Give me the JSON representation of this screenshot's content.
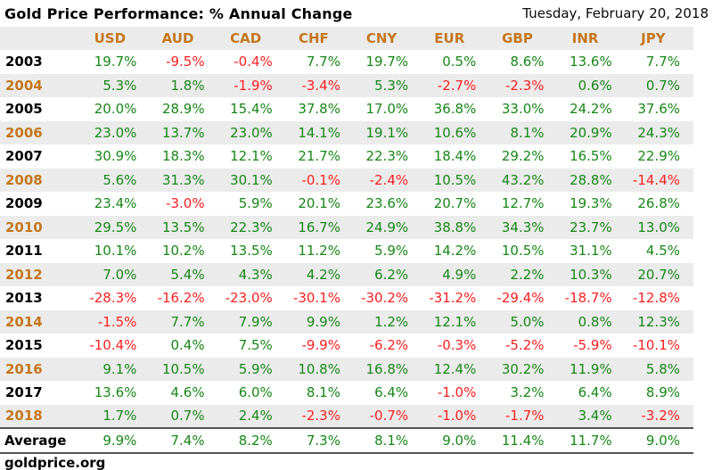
{
  "header": {
    "title": "Gold Price Performance: % Annual Change",
    "date": "Tuesday, February 20, 2018"
  },
  "chart_data": {
    "type": "table",
    "title": "Gold Price Performance: % Annual Change",
    "columns": [
      "USD",
      "AUD",
      "CAD",
      "CHF",
      "CNY",
      "EUR",
      "GBP",
      "INR",
      "JPY"
    ],
    "rows": [
      {
        "year": "2003",
        "values": [
          "19.7%",
          "-9.5%",
          "-0.4%",
          "7.7%",
          "19.7%",
          "0.5%",
          "8.6%",
          "13.6%",
          "7.7%"
        ]
      },
      {
        "year": "2004",
        "values": [
          "5.3%",
          "1.8%",
          "-1.9%",
          "-3.4%",
          "5.3%",
          "-2.7%",
          "-2.3%",
          "0.6%",
          "0.7%"
        ]
      },
      {
        "year": "2005",
        "values": [
          "20.0%",
          "28.9%",
          "15.4%",
          "37.8%",
          "17.0%",
          "36.8%",
          "33.0%",
          "24.2%",
          "37.6%"
        ]
      },
      {
        "year": "2006",
        "values": [
          "23.0%",
          "13.7%",
          "23.0%",
          "14.1%",
          "19.1%",
          "10.6%",
          "8.1%",
          "20.9%",
          "24.3%"
        ]
      },
      {
        "year": "2007",
        "values": [
          "30.9%",
          "18.3%",
          "12.1%",
          "21.7%",
          "22.3%",
          "18.4%",
          "29.2%",
          "16.5%",
          "22.9%"
        ]
      },
      {
        "year": "2008",
        "values": [
          "5.6%",
          "31.3%",
          "30.1%",
          "-0.1%",
          "-2.4%",
          "10.5%",
          "43.2%",
          "28.8%",
          "-14.4%"
        ]
      },
      {
        "year": "2009",
        "values": [
          "23.4%",
          "-3.0%",
          "5.9%",
          "20.1%",
          "23.6%",
          "20.7%",
          "12.7%",
          "19.3%",
          "26.8%"
        ]
      },
      {
        "year": "2010",
        "values": [
          "29.5%",
          "13.5%",
          "22.3%",
          "16.7%",
          "24.9%",
          "38.8%",
          "34.3%",
          "23.7%",
          "13.0%"
        ]
      },
      {
        "year": "2011",
        "values": [
          "10.1%",
          "10.2%",
          "13.5%",
          "11.2%",
          "5.9%",
          "14.2%",
          "10.5%",
          "31.1%",
          "4.5%"
        ]
      },
      {
        "year": "2012",
        "values": [
          "7.0%",
          "5.4%",
          "4.3%",
          "4.2%",
          "6.2%",
          "4.9%",
          "2.2%",
          "10.3%",
          "20.7%"
        ]
      },
      {
        "year": "2013",
        "values": [
          "-28.3%",
          "-16.2%",
          "-23.0%",
          "-30.1%",
          "-30.2%",
          "-31.2%",
          "-29.4%",
          "-18.7%",
          "-12.8%"
        ]
      },
      {
        "year": "2014",
        "values": [
          "-1.5%",
          "7.7%",
          "7.9%",
          "9.9%",
          "1.2%",
          "12.1%",
          "5.0%",
          "0.8%",
          "12.3%"
        ]
      },
      {
        "year": "2015",
        "values": [
          "-10.4%",
          "0.4%",
          "7.5%",
          "-9.9%",
          "-6.2%",
          "-0.3%",
          "-5.2%",
          "-5.9%",
          "-10.1%"
        ]
      },
      {
        "year": "2016",
        "values": [
          "9.1%",
          "10.5%",
          "5.9%",
          "10.8%",
          "16.8%",
          "12.4%",
          "30.2%",
          "11.9%",
          "5.8%"
        ]
      },
      {
        "year": "2017",
        "values": [
          "13.6%",
          "4.6%",
          "6.0%",
          "8.1%",
          "6.4%",
          "-1.0%",
          "3.2%",
          "6.4%",
          "8.9%"
        ]
      },
      {
        "year": "2018",
        "values": [
          "1.7%",
          "0.7%",
          "2.4%",
          "-2.3%",
          "-0.7%",
          "-1.0%",
          "-1.7%",
          "3.4%",
          "-3.2%"
        ]
      }
    ],
    "average": {
      "label": "Average",
      "values": [
        "9.9%",
        "7.4%",
        "8.2%",
        "7.3%",
        "8.1%",
        "9.0%",
        "11.4%",
        "11.7%",
        "9.0%"
      ]
    }
  },
  "footer": {
    "site": "goldprice.org"
  },
  "colors": {
    "positive": "#178717",
    "negative": "#ff2020",
    "accent_orange": "#c4761b",
    "stripe_gray": "#ebebeb",
    "rule_gray": "#555555"
  }
}
